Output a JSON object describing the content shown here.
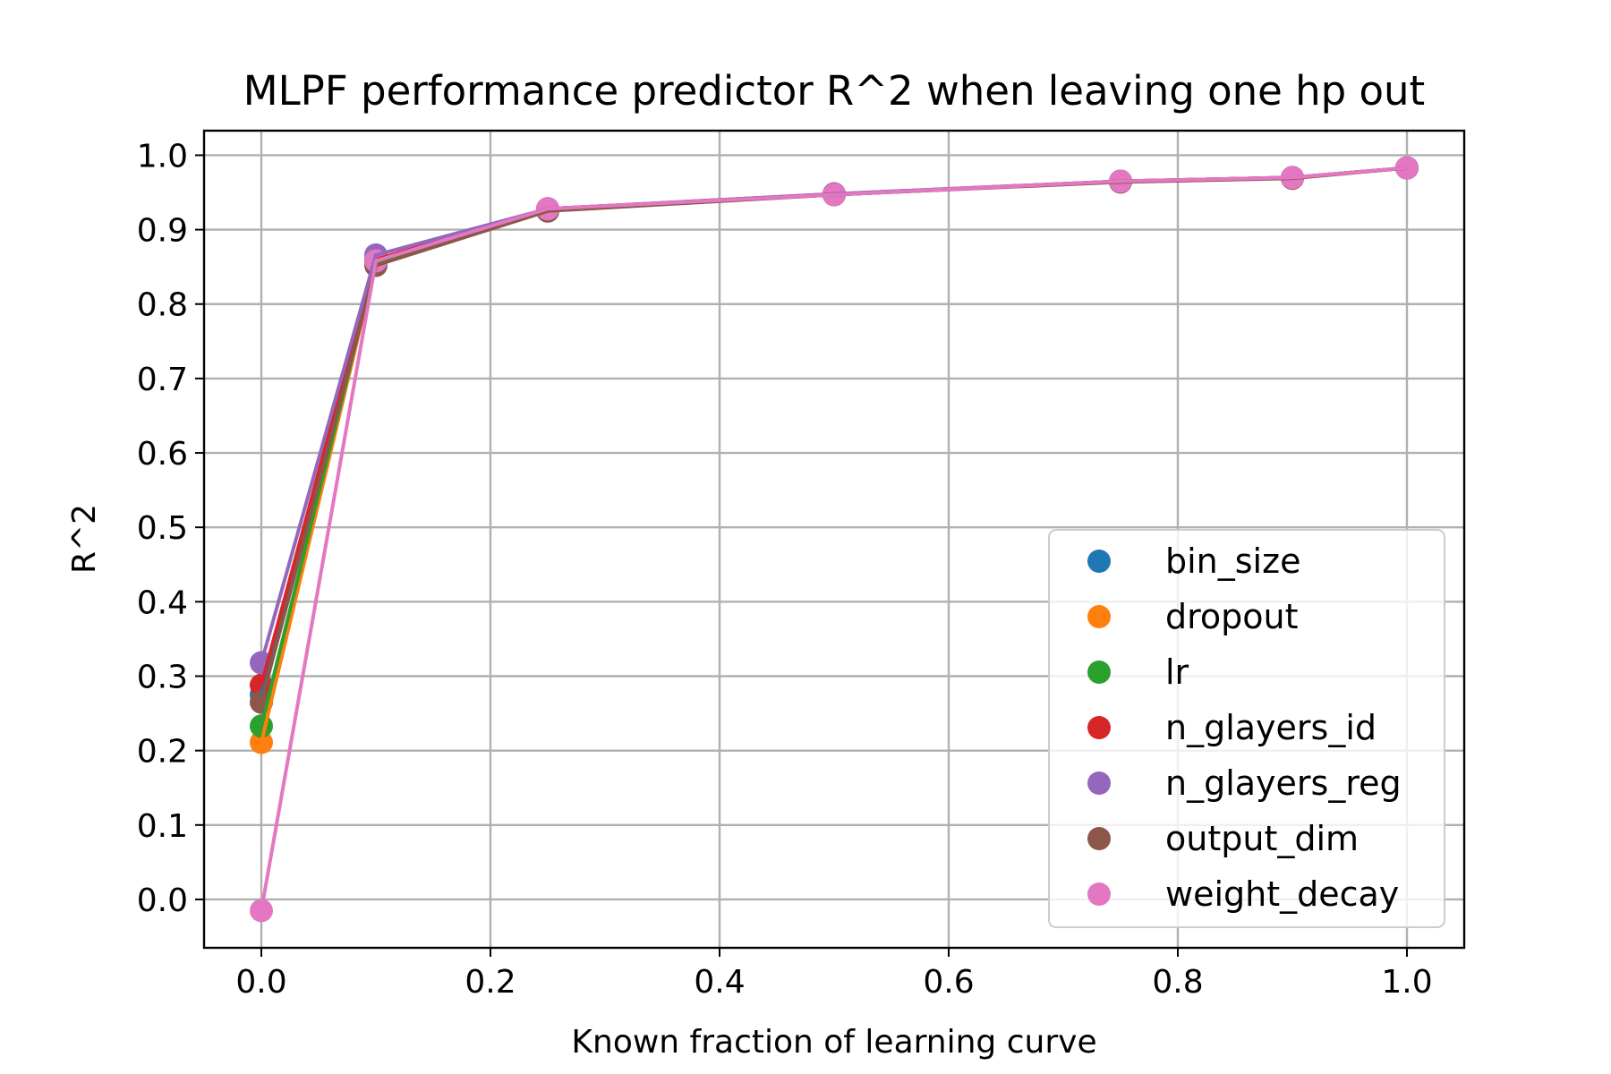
{
  "chart_data": {
    "type": "line",
    "title": "MLPF performance predictor R^2 when leaving one hp out",
    "xlabel": "Known fraction of learning curve",
    "ylabel": "R^2",
    "xlim": [
      -0.05,
      1.05
    ],
    "ylim": [
      -0.065,
      1.033
    ],
    "xticks": [
      0.0,
      0.2,
      0.4,
      0.6,
      0.8,
      1.0
    ],
    "xtick_labels": [
      "0.0",
      "0.2",
      "0.4",
      "0.6",
      "0.8",
      "1.0"
    ],
    "yticks": [
      0.0,
      0.1,
      0.2,
      0.3,
      0.4,
      0.5,
      0.6,
      0.7,
      0.8,
      0.9,
      1.0
    ],
    "ytick_labels": [
      "0.0",
      "0.1",
      "0.2",
      "0.3",
      "0.4",
      "0.5",
      "0.6",
      "0.7",
      "0.8",
      "0.9",
      "1.0"
    ],
    "grid": true,
    "legend_position": "lower-right",
    "x": [
      0.0,
      0.1,
      0.25,
      0.5,
      0.75,
      0.9,
      1.0
    ],
    "series": [
      {
        "name": "bin_size",
        "color": "#1f77b4",
        "values": [
          0.275,
          0.858,
          0.928,
          0.947,
          0.965,
          0.97,
          0.983
        ]
      },
      {
        "name": "dropout",
        "color": "#ff7f0e",
        "values": [
          0.211,
          0.856,
          0.927,
          0.947,
          0.965,
          0.97,
          0.983
        ]
      },
      {
        "name": "lr",
        "color": "#2ca02c",
        "values": [
          0.233,
          0.857,
          0.927,
          0.947,
          0.965,
          0.97,
          0.983
        ]
      },
      {
        "name": "n_glayers_id",
        "color": "#d62728",
        "values": [
          0.288,
          0.86,
          0.928,
          0.948,
          0.965,
          0.97,
          0.983
        ]
      },
      {
        "name": "n_glayers_reg",
        "color": "#9467bd",
        "values": [
          0.318,
          0.866,
          0.928,
          0.948,
          0.965,
          0.97,
          0.983
        ]
      },
      {
        "name": "output_dim",
        "color": "#8c564b",
        "values": [
          0.265,
          0.852,
          0.925,
          0.947,
          0.964,
          0.969,
          0.983
        ]
      },
      {
        "name": "weight_decay",
        "color": "#e377c2",
        "values": [
          -0.015,
          0.858,
          0.928,
          0.947,
          0.965,
          0.97,
          0.983
        ]
      }
    ]
  }
}
